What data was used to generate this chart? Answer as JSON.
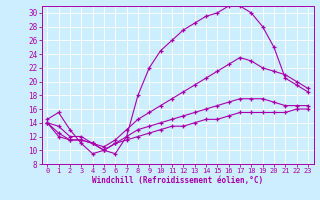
{
  "xlabel": "Windchill (Refroidissement éolien,°C)",
  "bg_color": "#cceeff",
  "line_color": "#aa00aa",
  "ylim": [
    8,
    31
  ],
  "xlim": [
    -0.5,
    23.5
  ],
  "yticks": [
    8,
    10,
    12,
    14,
    16,
    18,
    20,
    22,
    24,
    26,
    28,
    30
  ],
  "xticks": [
    0,
    1,
    2,
    3,
    4,
    5,
    6,
    7,
    8,
    9,
    10,
    11,
    12,
    13,
    14,
    15,
    16,
    17,
    18,
    19,
    20,
    21,
    22,
    23
  ],
  "series1_y": [
    14.5,
    15.5,
    13.0,
    11.0,
    9.5,
    10.0,
    9.5,
    12.0,
    18.0,
    22.0,
    24.5,
    26.0,
    27.5,
    28.5,
    29.5,
    30.0,
    31.0,
    31.0,
    30.0,
    28.0,
    25.0,
    20.5,
    19.5,
    18.5
  ],
  "series2_y": [
    14.0,
    13.5,
    12.0,
    12.0,
    11.0,
    10.5,
    11.5,
    13.0,
    14.5,
    15.5,
    16.5,
    17.5,
    18.5,
    19.5,
    20.5,
    21.5,
    22.5,
    23.5,
    23.0,
    22.0,
    21.5,
    21.0,
    20.0,
    19.0
  ],
  "series3_y": [
    14.0,
    12.5,
    11.5,
    11.5,
    11.0,
    10.0,
    11.0,
    12.0,
    13.0,
    13.5,
    14.0,
    14.5,
    15.0,
    15.5,
    16.0,
    16.5,
    17.0,
    17.5,
    17.5,
    17.5,
    17.0,
    16.5,
    16.5,
    16.5
  ],
  "series4_y": [
    14.0,
    12.0,
    11.5,
    11.5,
    11.0,
    10.0,
    11.0,
    11.5,
    12.0,
    12.5,
    13.0,
    13.5,
    13.5,
    14.0,
    14.5,
    14.5,
    15.0,
    15.5,
    15.5,
    15.5,
    15.5,
    15.5,
    16.0,
    16.0
  ]
}
